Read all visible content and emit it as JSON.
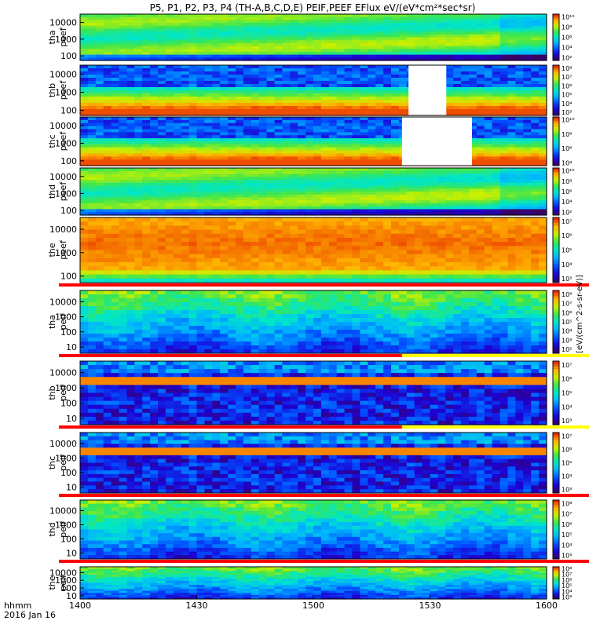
{
  "chart_data": {
    "type": "heatmap",
    "title": "P5, P1, P2, P3, P4 (TH-A,B,C,D,E) PEIF,PEEF EFlux eV/(eV*cm²*sec*sr)",
    "x_axis": {
      "ticks": [
        "1400",
        "1430",
        "1500",
        "1530",
        "1600"
      ],
      "label_line1": "hhmm",
      "label_line2": "2016 Jan 16",
      "range": [
        "14:00",
        "16:00"
      ]
    },
    "colorbar_label": "[eV/(cm^2-s-sr-eV)]",
    "panels": [
      {
        "label1": "tha",
        "label2": "peef",
        "yticks": [
          "10000",
          "1000",
          "100"
        ],
        "cbar_ticks": [
          "10¹⁰",
          "10⁸",
          "10⁶",
          "10⁴",
          "10²"
        ],
        "scheme": "tha_peef",
        "gaps": [],
        "strip": null
      },
      {
        "label1": "thb",
        "label2": "peef",
        "yticks": [
          "10000",
          "1000",
          "100"
        ],
        "cbar_ticks": [
          "10⁸",
          "10⁷",
          "10⁶",
          "10⁵",
          "10⁴",
          "10³"
        ],
        "scheme": "b_peef",
        "gaps": [
          [
            0.704,
            0.785
          ]
        ],
        "strip": null
      },
      {
        "label1": "thc",
        "label2": "peef",
        "yticks": [
          "10000",
          "1000",
          "100"
        ],
        "cbar_ticks": [
          "10¹⁰",
          "10⁸",
          "10⁶",
          "10⁴"
        ],
        "scheme": "b_peef",
        "gaps": [
          [
            0.69,
            0.84
          ]
        ],
        "strip": null
      },
      {
        "label1": "thd",
        "label2": "peef",
        "yticks": [
          "10000",
          "1000",
          "100"
        ],
        "cbar_ticks": [
          "10¹⁰",
          "10⁸",
          "10⁶",
          "10⁴",
          "10²"
        ],
        "scheme": "tha_peef",
        "gaps": [],
        "strip": null
      },
      {
        "label1": "the",
        "label2": "peef",
        "yticks": [
          "10000",
          "1000",
          "100"
        ],
        "cbar_ticks": [
          "10⁷",
          "10⁶",
          "10⁵",
          "10⁴",
          "10³"
        ],
        "scheme": "the_peef",
        "gaps": [],
        "strip": "red"
      },
      {
        "label1": "tha",
        "label2": "peif",
        "yticks": [
          "10000",
          "1000",
          "100",
          "10"
        ],
        "cbar_ticks": [
          "10⁸",
          "10⁷",
          "10⁶",
          "10⁵",
          "10⁴",
          "10³",
          "10²"
        ],
        "scheme": "peif",
        "gaps": [],
        "strip": "red_yellow"
      },
      {
        "label1": "thb",
        "label2": "peif",
        "yticks": [
          "10000",
          "1000",
          "100",
          "10"
        ],
        "cbar_ticks": [
          "10⁷",
          "10⁶",
          "10⁵",
          "10⁴",
          "10³"
        ],
        "scheme": "peif_b",
        "gaps": [],
        "strip": "red_yellow"
      },
      {
        "label1": "thc",
        "label2": "peif",
        "yticks": [
          "10000",
          "1000",
          "100",
          "10"
        ],
        "cbar_ticks": [
          "10⁷",
          "10⁶",
          "10⁵",
          "10⁴",
          "10³"
        ],
        "scheme": "peif_b",
        "gaps": [],
        "strip": "red"
      },
      {
        "label1": "thd",
        "label2": "peif",
        "yticks": [
          "10000",
          "1000",
          "100",
          "10"
        ],
        "cbar_ticks": [
          "10⁸",
          "10⁷",
          "10⁶",
          "10⁵",
          "10⁴",
          "10³"
        ],
        "scheme": "peif",
        "gaps": [],
        "strip": "red"
      },
      {
        "label1": "the",
        "label2": "peif",
        "yticks": [
          "10000",
          "1000",
          "100",
          "10"
        ],
        "cbar_ticks": [
          "10⁸",
          "10⁷",
          "10⁶",
          "10⁵",
          "10⁴",
          "10³"
        ],
        "scheme": "peif",
        "gaps": [],
        "strip": null
      }
    ]
  }
}
